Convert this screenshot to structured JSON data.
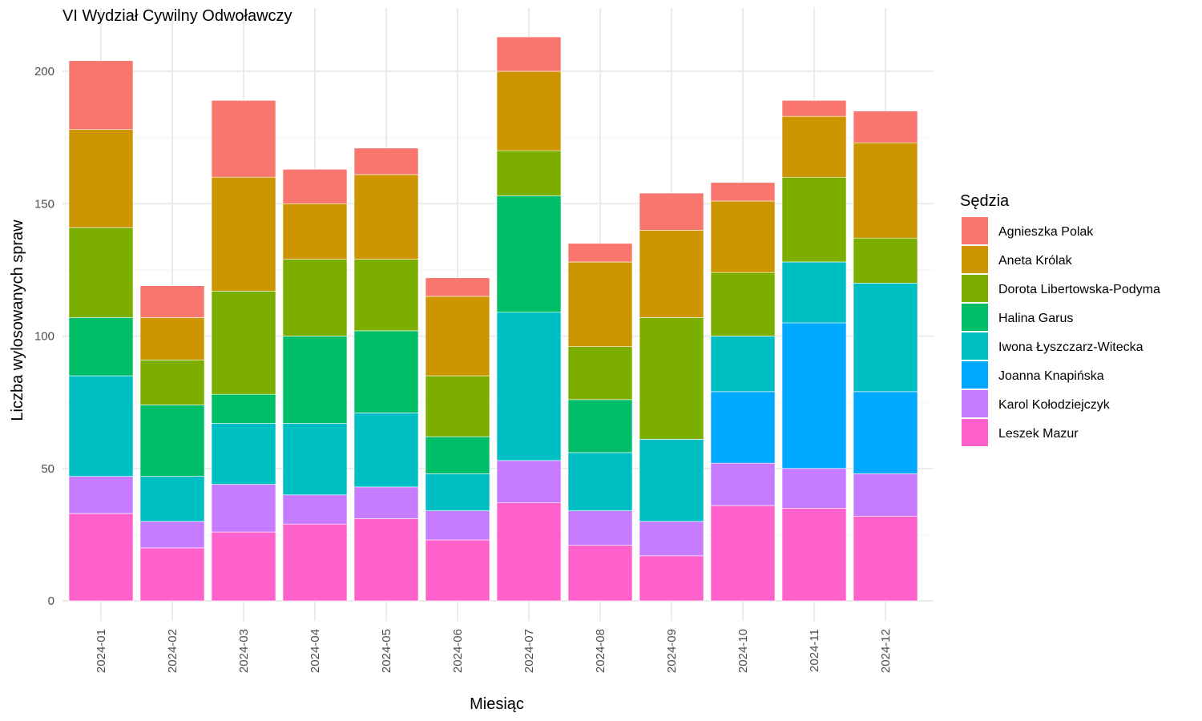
{
  "chart_data": {
    "type": "bar",
    "stacked": true,
    "title": "VI Wydział Cywilny Odwoławczy",
    "xlabel": "Miesiąc",
    "ylabel": "Liczba wylosowanych spraw",
    "legend_title": "Sędzia",
    "legend_position": "right",
    "grid": true,
    "ylim": [
      0,
      220
    ],
    "yticks": [
      0,
      50,
      100,
      150,
      200
    ],
    "categories": [
      "2024-01",
      "2024-02",
      "2024-03",
      "2024-04",
      "2024-05",
      "2024-06",
      "2024-07",
      "2024-08",
      "2024-09",
      "2024-10",
      "2024-11",
      "2024-12"
    ],
    "series": [
      {
        "name": "Agnieszka Polak",
        "color": "#F8766D",
        "values": [
          26,
          12,
          29,
          13,
          10,
          7,
          13,
          7,
          14,
          7,
          6,
          12
        ]
      },
      {
        "name": "Aneta Królak",
        "color": "#CD9600",
        "values": [
          37,
          16,
          43,
          21,
          32,
          30,
          30,
          32,
          33,
          27,
          23,
          36
        ]
      },
      {
        "name": "Dorota Libertowska-Podyma",
        "color": "#7CAE00",
        "values": [
          34,
          17,
          39,
          29,
          27,
          23,
          17,
          20,
          46,
          24,
          32,
          17
        ]
      },
      {
        "name": "Halina Garus",
        "color": "#00BE67",
        "values": [
          22,
          27,
          11,
          33,
          31,
          14,
          44,
          20,
          0,
          0,
          0,
          0
        ]
      },
      {
        "name": "Iwona Łyszczarz-Witecka",
        "color": "#00BFC4",
        "values": [
          38,
          17,
          23,
          27,
          28,
          14,
          56,
          22,
          31,
          21,
          23,
          41
        ]
      },
      {
        "name": "Joanna Knapińska",
        "color": "#00A9FF",
        "values": [
          0,
          0,
          0,
          0,
          0,
          0,
          0,
          0,
          0,
          27,
          55,
          31
        ]
      },
      {
        "name": "Karol Kołodziejczyk",
        "color": "#C77CFF",
        "values": [
          14,
          10,
          18,
          11,
          12,
          11,
          16,
          13,
          13,
          16,
          15,
          16
        ]
      },
      {
        "name": "Leszek Mazur",
        "color": "#FF61CC",
        "values": [
          33,
          20,
          26,
          29,
          31,
          23,
          37,
          21,
          17,
          36,
          35,
          32
        ]
      }
    ]
  }
}
